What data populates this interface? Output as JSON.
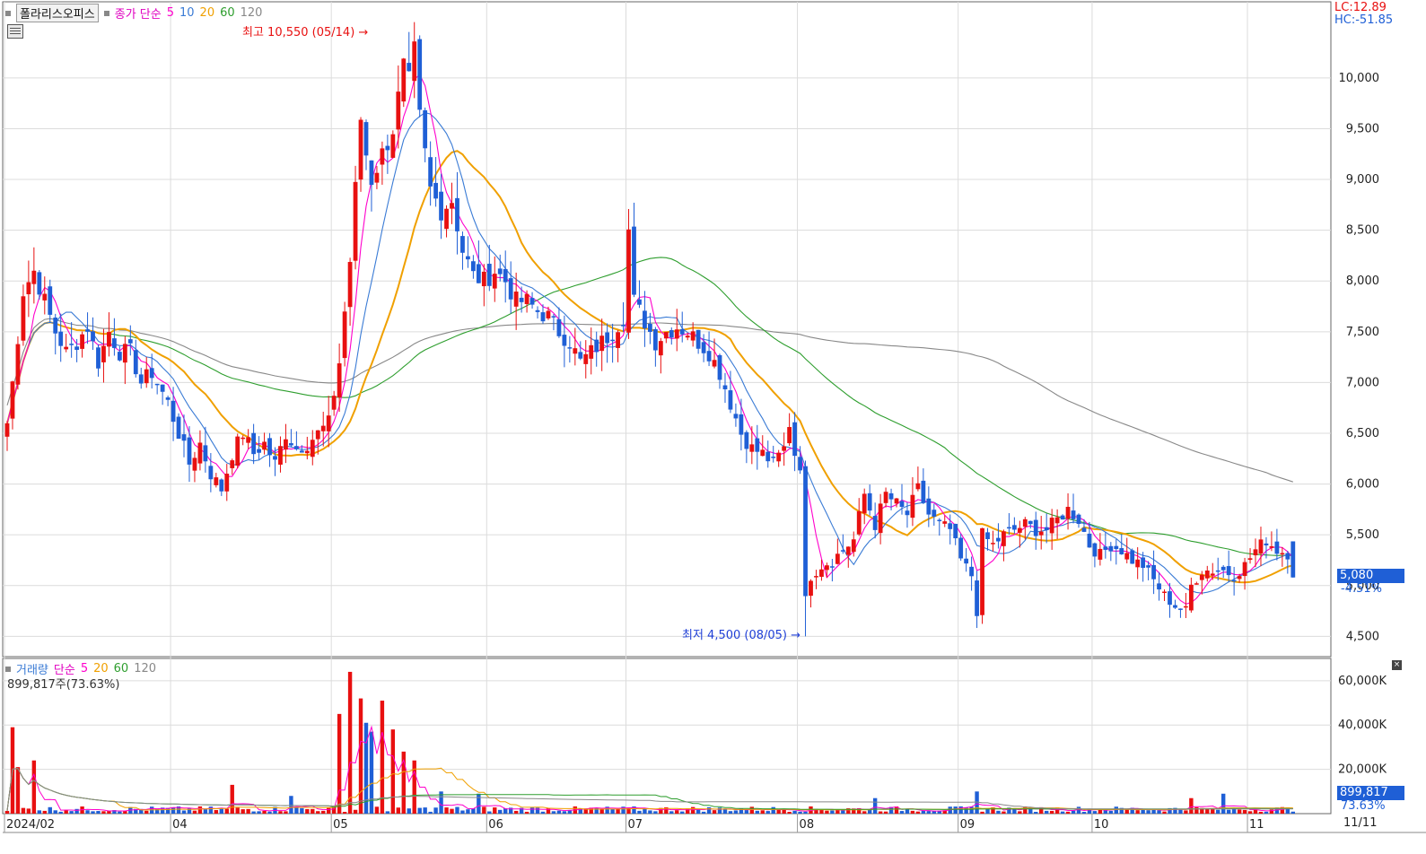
{
  "window": {
    "stock_name": "폴라리스오피스",
    "price_legend": {
      "kind": "종가 단순",
      "ma": [
        "5",
        "10",
        "20",
        "60",
        "120"
      ]
    },
    "volume_legend": {
      "kind": "단순",
      "title": "거래량",
      "ma": [
        "5",
        "20",
        "60",
        "120"
      ],
      "volume_text": "899,817주(73.63%)"
    },
    "lc_text": "LC:12.89",
    "hc_text": "HC:-51.85",
    "current_price_tag": "5,080",
    "current_change_tag": "-4.51%",
    "current_volume_tag": "899,817",
    "current_volume_pct_tag": "73.63%",
    "high_annotation": "최고 10,550 (05/14)",
    "low_annotation": "최저 4,500 (08/05)",
    "last_date_label": "11/11"
  },
  "colors": {
    "up": "#e81010",
    "down": "#1f5fd6",
    "ma5": "#ff00cc",
    "ma10": "#3a7bd5",
    "ma20": "#f0a000",
    "ma60": "#2e9e2e",
    "ma120": "#888888",
    "grid": "#dcdcdc",
    "axis": "#555555",
    "tag_bg": "#1f5fd6"
  },
  "chart_data": {
    "type": "candlestick",
    "price_axis_ticks": [
      4500,
      5000,
      5500,
      6000,
      6500,
      7000,
      7500,
      8000,
      8500,
      9000,
      9500,
      10000
    ],
    "price_axis_labels": [
      "4,500",
      "5,000",
      "5,500",
      "6,000",
      "6,500",
      "7,000",
      "7,500",
      "8,000",
      "8,500",
      "9,000",
      "9,500",
      "10,000"
    ],
    "price_ylim": [
      4300,
      10750
    ],
    "volume_axis_ticks": [
      20000000,
      40000000,
      60000000
    ],
    "volume_axis_labels": [
      "20,000K",
      "40,000K",
      "60,000K"
    ],
    "volume_ylim": [
      0,
      66000000
    ],
    "month_labels": [
      {
        "label": "2024/02",
        "index": 0
      },
      {
        "label": "04",
        "index": 31
      },
      {
        "label": "05",
        "index": 61
      },
      {
        "label": "06",
        "index": 90
      },
      {
        "label": "07",
        "index": 116
      },
      {
        "label": "08",
        "index": 148
      },
      {
        "label": "09",
        "index": 178
      },
      {
        "label": "10",
        "index": 203
      },
      {
        "label": "11",
        "index": 232
      }
    ],
    "n_bars": 241,
    "anchors": [
      [
        0,
        6600
      ],
      [
        1,
        7000
      ],
      [
        3,
        7900
      ],
      [
        5,
        8100
      ],
      [
        7,
        7800
      ],
      [
        9,
        7500
      ],
      [
        11,
        7300
      ],
      [
        13,
        7400
      ],
      [
        15,
        7550
      ],
      [
        17,
        7200
      ],
      [
        19,
        7500
      ],
      [
        21,
        7300
      ],
      [
        23,
        7300
      ],
      [
        25,
        7000
      ],
      [
        27,
        7100
      ],
      [
        30,
        6800
      ],
      [
        32,
        6500
      ],
      [
        34,
        6200
      ],
      [
        36,
        6400
      ],
      [
        38,
        6100
      ],
      [
        40,
        5950
      ],
      [
        42,
        6300
      ],
      [
        44,
        6500
      ],
      [
        46,
        6300
      ],
      [
        48,
        6400
      ],
      [
        50,
        6200
      ],
      [
        52,
        6500
      ],
      [
        54,
        6350
      ],
      [
        56,
        6400
      ],
      [
        58,
        6500
      ],
      [
        60,
        6600
      ],
      [
        62,
        7200
      ],
      [
        64,
        8200
      ],
      [
        66,
        9600
      ],
      [
        67,
        9250
      ],
      [
        68,
        9000
      ],
      [
        70,
        9250
      ],
      [
        72,
        9500
      ],
      [
        74,
        10100
      ],
      [
        75,
        9950
      ],
      [
        76,
        10250
      ],
      [
        77,
        9600
      ],
      [
        79,
        8900
      ],
      [
        81,
        8700
      ],
      [
        83,
        8800
      ],
      [
        85,
        8300
      ],
      [
        87,
        8050
      ],
      [
        89,
        8000
      ],
      [
        91,
        8100
      ],
      [
        93,
        8000
      ],
      [
        95,
        7800
      ],
      [
        97,
        7800
      ],
      [
        99,
        7700
      ],
      [
        101,
        7650
      ],
      [
        103,
        7500
      ],
      [
        105,
        7400
      ],
      [
        107,
        7200
      ],
      [
        109,
        7300
      ],
      [
        111,
        7400
      ],
      [
        113,
        7500
      ],
      [
        115,
        7650
      ],
      [
        116,
        8500
      ],
      [
        117,
        7800
      ],
      [
        119,
        7600
      ],
      [
        121,
        7400
      ],
      [
        123,
        7500
      ],
      [
        125,
        7550
      ],
      [
        127,
        7500
      ],
      [
        129,
        7400
      ],
      [
        131,
        7300
      ],
      [
        133,
        7100
      ],
      [
        135,
        6800
      ],
      [
        137,
        6500
      ],
      [
        139,
        6350
      ],
      [
        141,
        6300
      ],
      [
        143,
        6200
      ],
      [
        145,
        6350
      ],
      [
        146,
        6600
      ],
      [
        147,
        6300
      ],
      [
        148,
        6200
      ],
      [
        149,
        4850
      ],
      [
        150,
        5100
      ],
      [
        152,
        5200
      ],
      [
        154,
        5250
      ],
      [
        156,
        5350
      ],
      [
        158,
        5450
      ],
      [
        160,
        5900
      ],
      [
        162,
        5600
      ],
      [
        164,
        5900
      ],
      [
        166,
        5800
      ],
      [
        168,
        5700
      ],
      [
        170,
        5950
      ],
      [
        172,
        5700
      ],
      [
        174,
        5600
      ],
      [
        176,
        5550
      ],
      [
        178,
        5250
      ],
      [
        180,
        5100
      ],
      [
        181,
        4750
      ],
      [
        182,
        5500
      ],
      [
        184,
        5400
      ],
      [
        186,
        5500
      ],
      [
        188,
        5550
      ],
      [
        190,
        5600
      ],
      [
        192,
        5550
      ],
      [
        194,
        5550
      ],
      [
        196,
        5650
      ],
      [
        198,
        5750
      ],
      [
        200,
        5650
      ],
      [
        202,
        5400
      ],
      [
        204,
        5300
      ],
      [
        206,
        5400
      ],
      [
        208,
        5350
      ],
      [
        210,
        5250
      ],
      [
        212,
        5200
      ],
      [
        214,
        5050
      ],
      [
        216,
        4900
      ],
      [
        218,
        4800
      ],
      [
        220,
        4750
      ],
      [
        221,
        5000
      ],
      [
        223,
        5150
      ],
      [
        225,
        5150
      ],
      [
        227,
        5150
      ],
      [
        229,
        5100
      ],
      [
        231,
        5200
      ],
      [
        233,
        5350
      ],
      [
        235,
        5450
      ],
      [
        237,
        5350
      ],
      [
        239,
        5320
      ],
      [
        240,
        5080
      ]
    ],
    "volume_spikes": [
      [
        1,
        39000000
      ],
      [
        2,
        21000000
      ],
      [
        5,
        24000000
      ],
      [
        62,
        45000000
      ],
      [
        64,
        64000000
      ],
      [
        66,
        52000000
      ],
      [
        67,
        41000000
      ],
      [
        68,
        37000000
      ],
      [
        70,
        51000000
      ],
      [
        72,
        38000000
      ],
      [
        74,
        28000000
      ],
      [
        76,
        24000000
      ],
      [
        81,
        10000000
      ],
      [
        42,
        13000000
      ],
      [
        53,
        8000000
      ],
      [
        88,
        9000000
      ],
      [
        162,
        7000000
      ],
      [
        181,
        10000000
      ],
      [
        221,
        7000000
      ],
      [
        227,
        9000000
      ]
    ],
    "last": {
      "close": 5080,
      "change_pct": -4.51,
      "volume": 899817
    },
    "high": {
      "price": 10550,
      "date": "05/14"
    },
    "low": {
      "price": 4500,
      "date": "08/05"
    }
  }
}
